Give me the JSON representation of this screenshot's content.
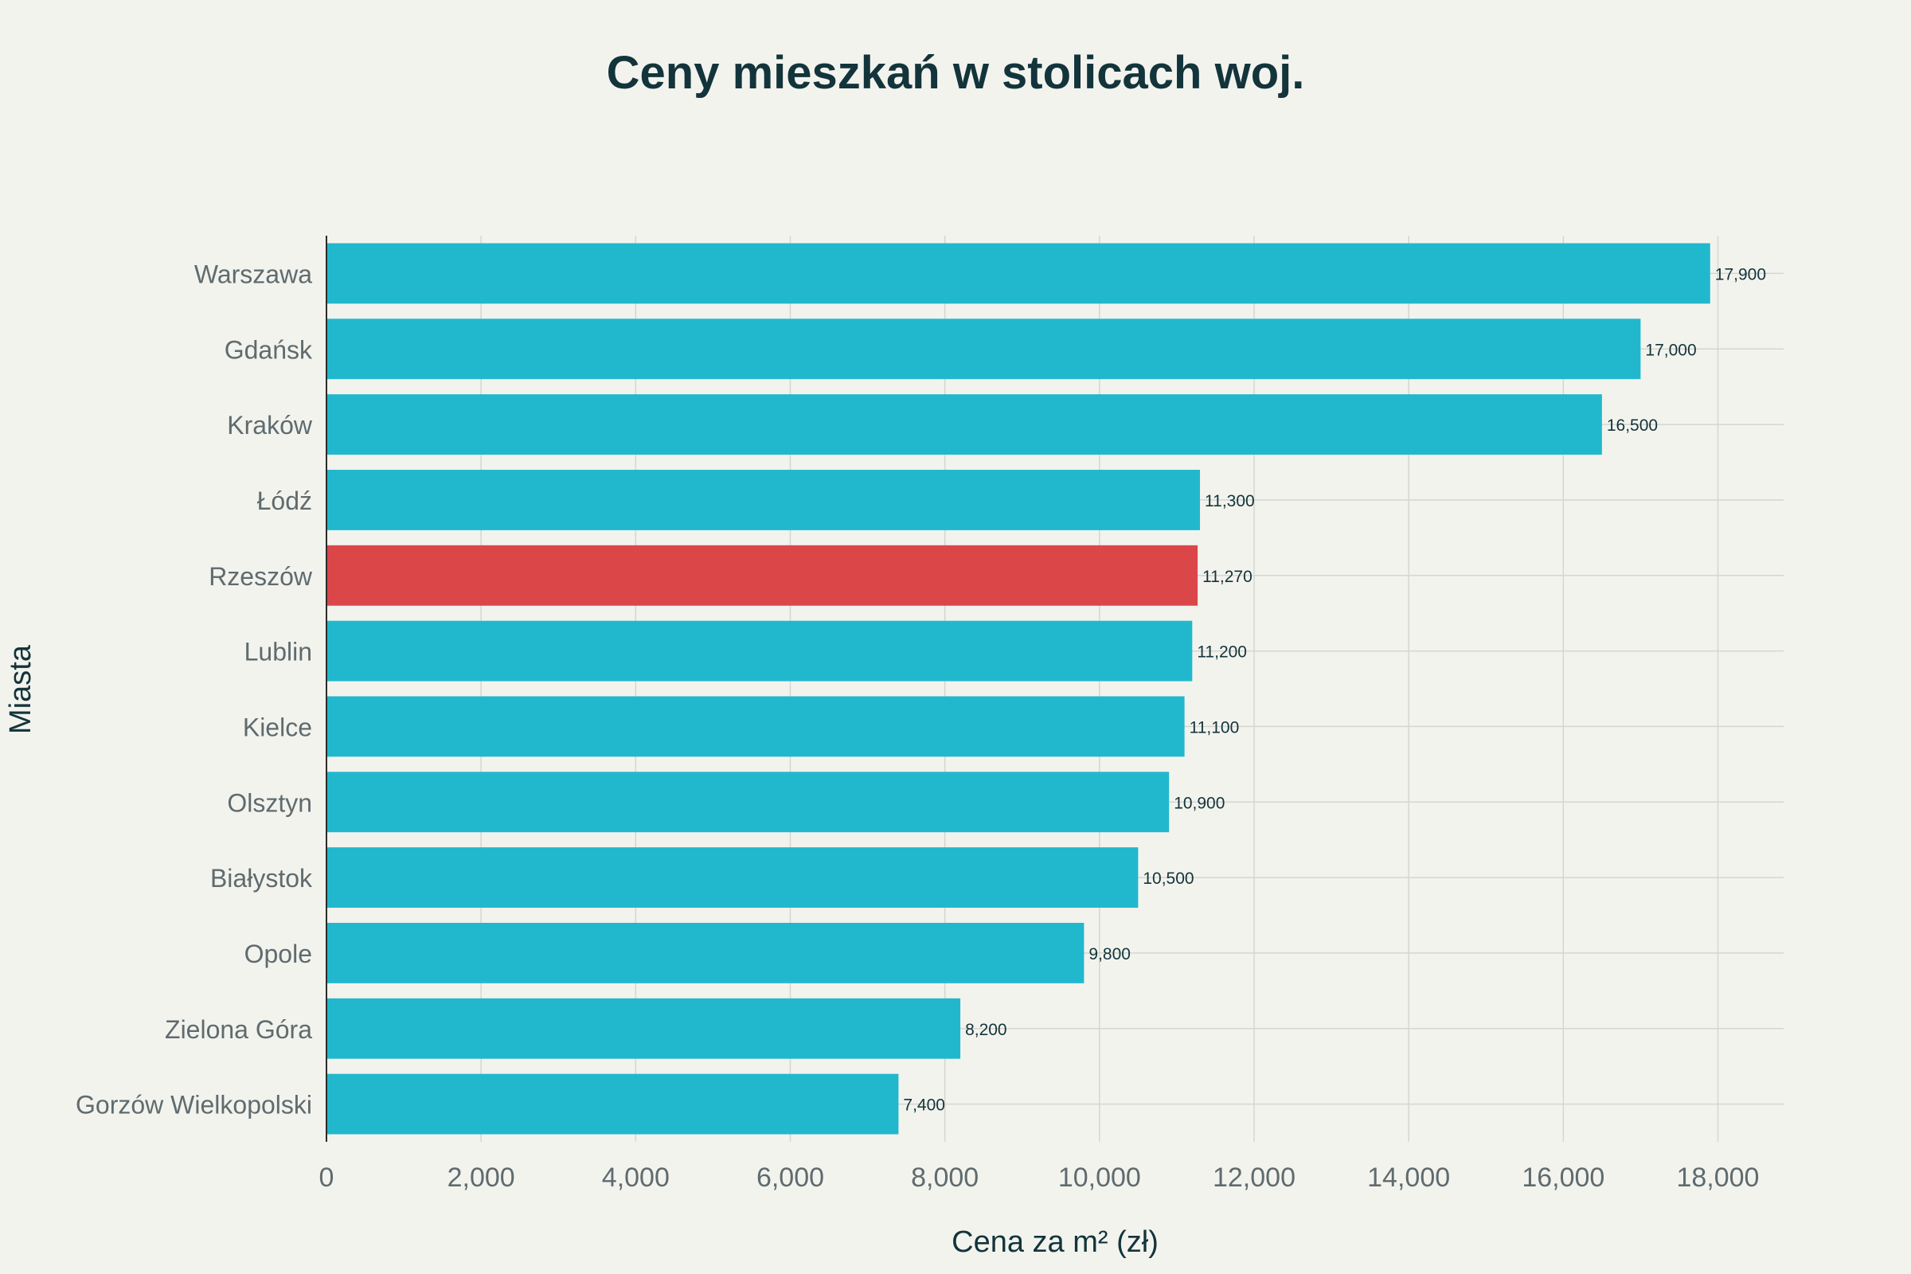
{
  "chart_data": {
    "type": "bar",
    "orientation": "horizontal",
    "title": "Ceny mieszkań w stolicach woj.",
    "xlabel": "Cena za m² (zł)",
    "ylabel": "Miasta",
    "categories": [
      "Warszawa",
      "Gdańsk",
      "Kraków",
      "Łódź",
      "Rzeszów",
      "Lublin",
      "Kielce",
      "Olsztyn",
      "Białystok",
      "Opole",
      "Zielona Góra",
      "Gorzów Wielkopolski"
    ],
    "values": [
      17900,
      17000,
      16500,
      11300,
      11270,
      11200,
      11100,
      10900,
      10500,
      9800,
      8200,
      7400
    ],
    "value_labels": [
      "17,900",
      "17,000",
      "16,500",
      "11,300",
      "11,270",
      "11,200",
      "11,100",
      "10,900",
      "10,500",
      "9,800",
      "8,200",
      "7,400"
    ],
    "xlim": [
      0,
      18850
    ],
    "x_ticks": [
      0,
      2000,
      4000,
      6000,
      8000,
      10000,
      12000,
      14000,
      16000,
      18000
    ],
    "x_tick_labels": [
      "0",
      "2,000",
      "4,000",
      "6,000",
      "8,000",
      "10,000",
      "12,000",
      "14,000",
      "16,000",
      "18,000"
    ],
    "highlight_category": "Rzeszów",
    "grid": true,
    "legend": "none",
    "colors": {
      "bar": "#21b8cd",
      "highlight": "#db4649",
      "background": "#f3f3ee",
      "grid": "#d5d6d1",
      "axis": "#2b2b2b",
      "title": "#13343b",
      "tick_label": "#5f6b6e",
      "value_label": "#13343b"
    }
  }
}
